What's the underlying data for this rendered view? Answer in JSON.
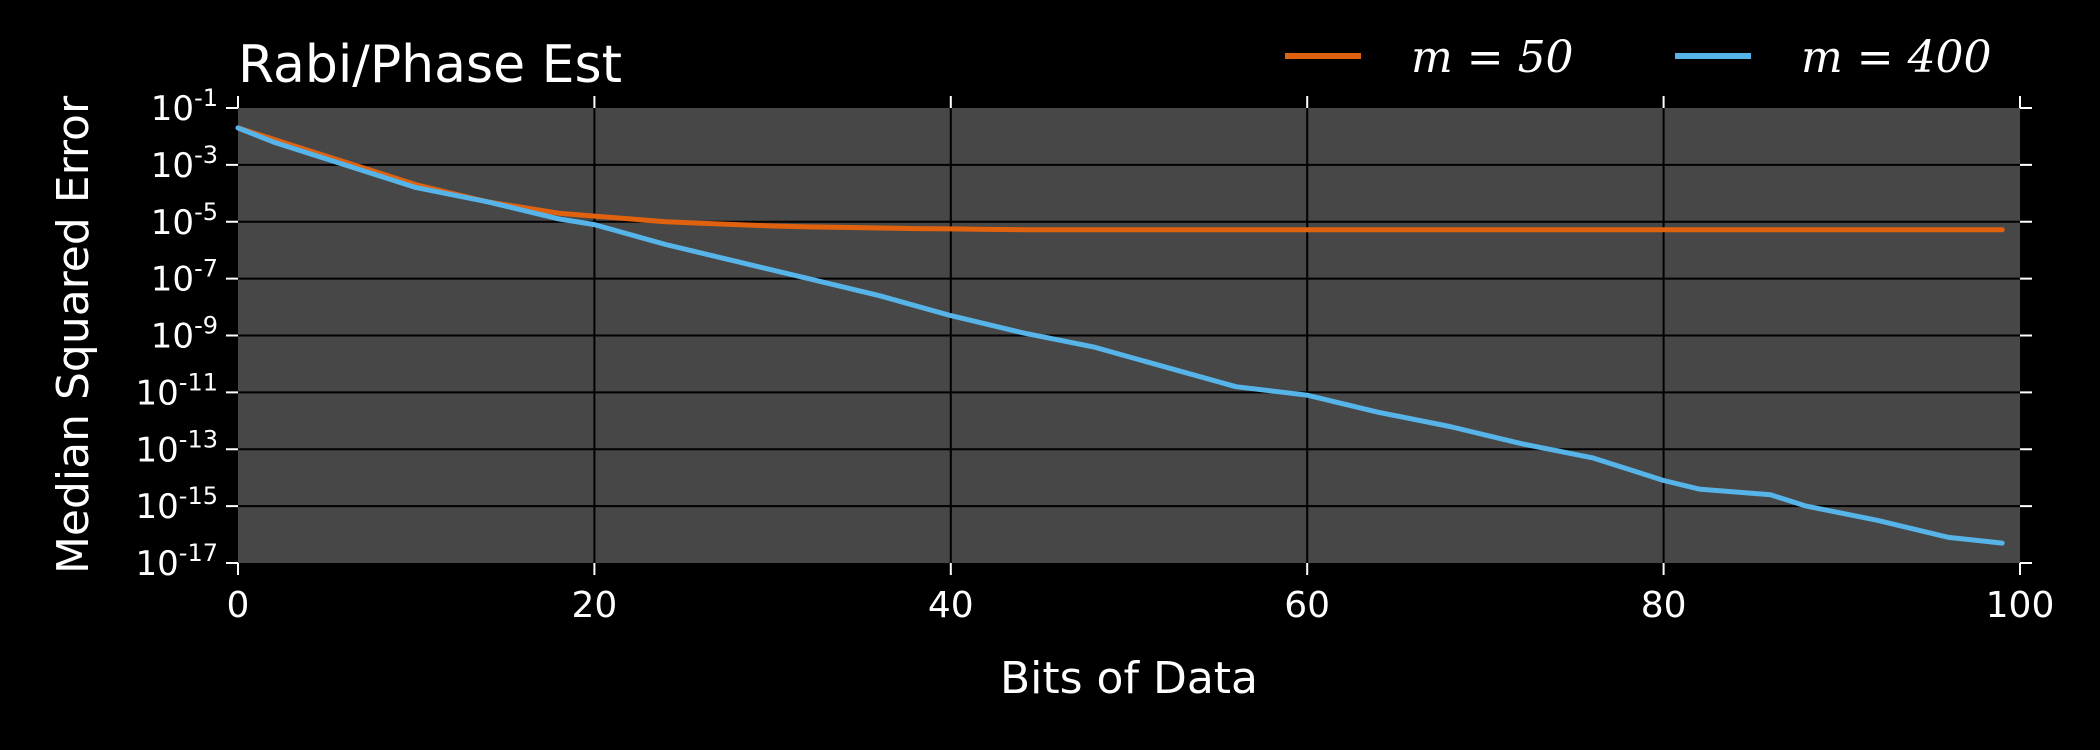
{
  "chart_data": {
    "type": "line",
    "title": "Rabi/Phase Est",
    "xlabel": "Bits of Data",
    "ylabel": "Median Squared Error",
    "xlim": [
      0,
      100
    ],
    "ylim_log10": [
      -17,
      -1
    ],
    "y_scale": "log",
    "x_ticks": [
      0,
      20,
      40,
      60,
      80,
      100
    ],
    "y_tick_exponents": [
      -1,
      -3,
      -5,
      -7,
      -9,
      -11,
      -13,
      -15,
      -17
    ],
    "y_tick_base": "10",
    "grid": true,
    "legend_placement": "top-right",
    "colors": {
      "background": "#000000",
      "plot_area": "#474747",
      "grid": "#000000",
      "text": "#ffffff"
    },
    "series": [
      {
        "name": "m = 50",
        "color": "#e0620f",
        "x": [
          0,
          2,
          4,
          6,
          8,
          10,
          12,
          14,
          16,
          18,
          20,
          22,
          24,
          26,
          28,
          30,
          32,
          34,
          36,
          38,
          40,
          42,
          44,
          50,
          60,
          70,
          80,
          90,
          99
        ],
        "log10_y": [
          -1.7,
          -2.1,
          -2.5,
          -2.9,
          -3.3,
          -3.7,
          -4.0,
          -4.3,
          -4.5,
          -4.7,
          -4.8,
          -4.9,
          -5.0,
          -5.05,
          -5.1,
          -5.15,
          -5.18,
          -5.2,
          -5.22,
          -5.24,
          -5.25,
          -5.27,
          -5.28,
          -5.28,
          -5.28,
          -5.28,
          -5.28,
          -5.28,
          -5.28
        ]
      },
      {
        "name": "m = 400",
        "color": "#56b4e9",
        "x": [
          0,
          2,
          4,
          6,
          8,
          10,
          14,
          18,
          20,
          24,
          28,
          32,
          36,
          40,
          44,
          48,
          52,
          56,
          60,
          64,
          68,
          72,
          76,
          80,
          82,
          86,
          88,
          92,
          96,
          99
        ],
        "log10_y": [
          -1.7,
          -2.2,
          -2.6,
          -3.0,
          -3.4,
          -3.8,
          -4.3,
          -4.9,
          -5.1,
          -5.8,
          -6.4,
          -7.0,
          -7.6,
          -8.3,
          -8.9,
          -9.4,
          -10.1,
          -10.8,
          -11.1,
          -11.7,
          -12.2,
          -12.8,
          -13.3,
          -14.1,
          -14.4,
          -14.6,
          -15.0,
          -15.5,
          -16.1,
          -16.3
        ]
      }
    ]
  }
}
